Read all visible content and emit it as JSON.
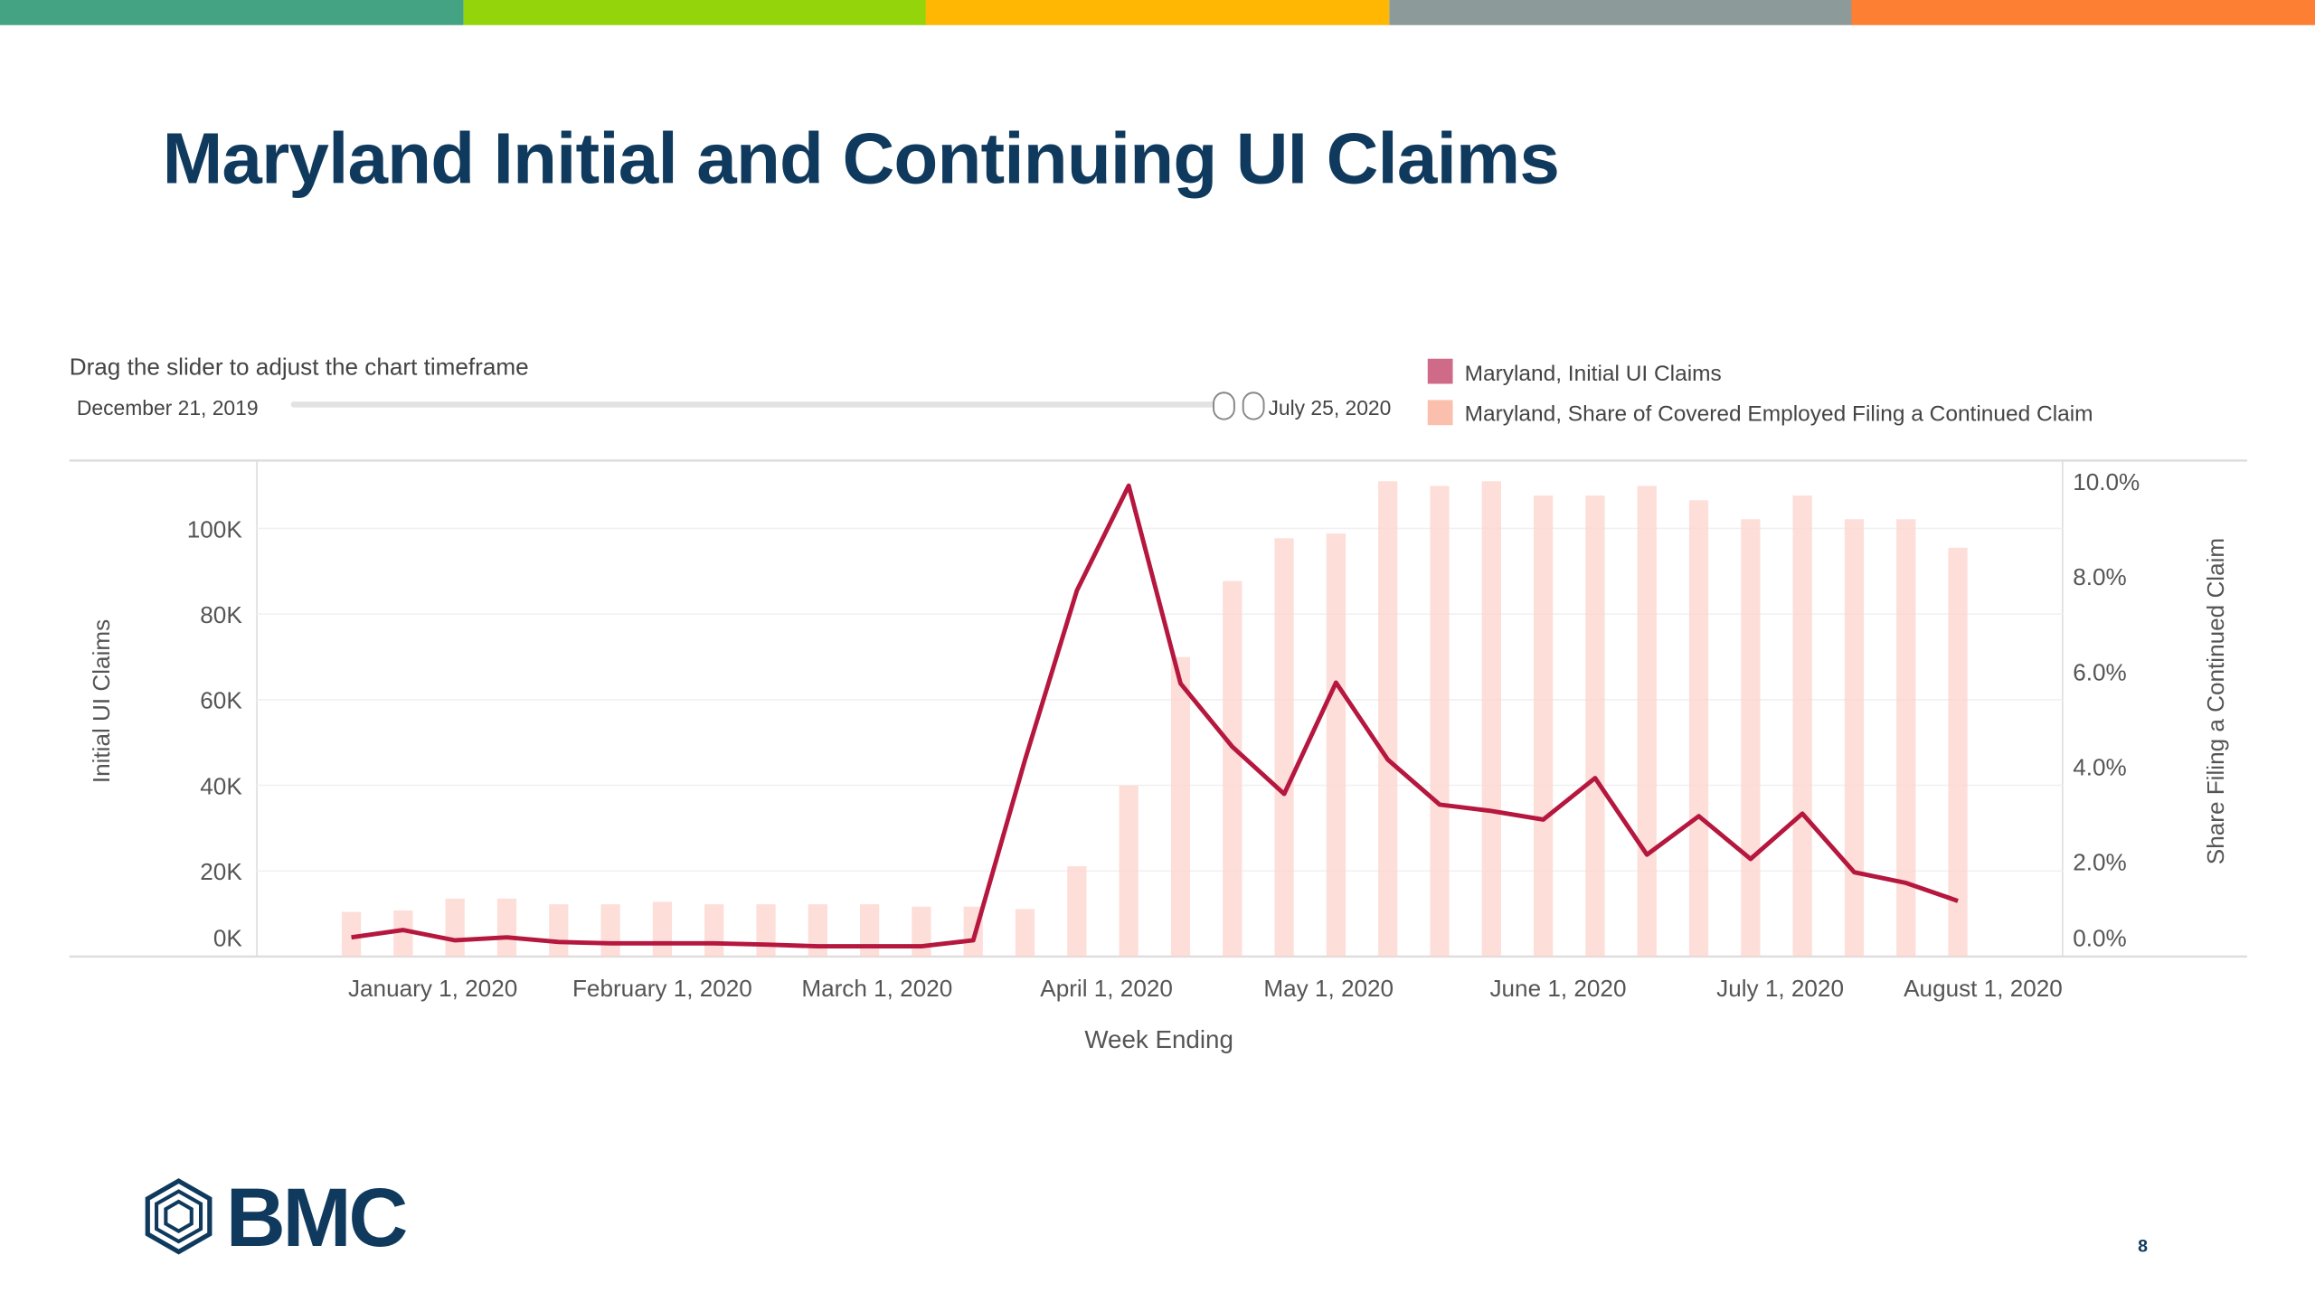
{
  "colors": {
    "stripes": [
      "#44a383",
      "#93d40a",
      "#ffb703",
      "#8c9a99",
      "#fd7f33"
    ],
    "brand": "#0f3a5d",
    "line": "#b5173e",
    "bar": "#fcd6cf",
    "legend_line": "#cf6a88",
    "legend_bar": "#fbbfad"
  },
  "title": "Maryland Initial and Continuing UI Claims",
  "slider": {
    "instruction": "Drag the slider to adjust the chart timeframe",
    "start_label": "December 21, 2019",
    "end_label": "July 25, 2020"
  },
  "logo": {
    "text": "BMC"
  },
  "page_number": "8",
  "chart_data": {
    "type": "bar+line",
    "title": "Maryland Initial and Continuing UI Claims",
    "xlabel": "Week Ending",
    "ylabel": "Initial UI Claims",
    "y2label": "Share Filing a Continued Claim",
    "legend": [
      "Maryland, Initial UI Claims",
      "Maryland, Share of Covered Employed Filing a Continued Claim"
    ],
    "legend_position": "top-right",
    "first_week": "2019-12-21",
    "x_ticks": [
      {
        "label": "January 1, 2020",
        "days": 11
      },
      {
        "label": "February 1, 2020",
        "days": 42
      },
      {
        "label": "March 1, 2020",
        "days": 71
      },
      {
        "label": "April 1, 2020",
        "days": 102
      },
      {
        "label": "May 1, 2020",
        "days": 132
      },
      {
        "label": "June 1, 2020",
        "days": 163
      },
      {
        "label": "July 1, 2020",
        "days": 193
      },
      {
        "label": "August 1, 2020",
        "days": 224
      }
    ],
    "y_ticks": [
      {
        "label": "0K",
        "v": 0
      },
      {
        "label": "20K",
        "v": 20000
      },
      {
        "label": "40K",
        "v": 40000
      },
      {
        "label": "60K",
        "v": 60000
      },
      {
        "label": "80K",
        "v": 80000
      },
      {
        "label": "100K",
        "v": 100000
      }
    ],
    "y2_ticks": [
      {
        "label": "0.0%",
        "v": 0
      },
      {
        "label": "2.0%",
        "v": 2
      },
      {
        "label": "4.0%",
        "v": 4
      },
      {
        "label": "6.0%",
        "v": 6
      },
      {
        "label": "8.0%",
        "v": 8
      },
      {
        "label": "10.0%",
        "v": 10
      }
    ],
    "ylim": [
      0,
      115000
    ],
    "y2lim": [
      0,
      10.4
    ],
    "series": [
      {
        "name": "Maryland, Initial UI Claims",
        "type": "line",
        "axis": "left",
        "values": [
          4500,
          6200,
          3800,
          4500,
          3400,
          3100,
          3100,
          3100,
          2800,
          2400,
          2400,
          2400,
          3800,
          46000,
          85500,
          110000,
          63800,
          49000,
          38000,
          64000,
          46000,
          35500,
          34000,
          32000,
          41700,
          23800,
          32800,
          22800,
          33400,
          19700,
          17200,
          13000
        ]
      },
      {
        "name": "Maryland, Share of Covered Employed Filing a Continued Claim",
        "type": "bar",
        "axis": "right",
        "values": [
          0.94,
          0.97,
          1.22,
          1.22,
          1.1,
          1.1,
          1.15,
          1.1,
          1.1,
          1.1,
          1.1,
          1.05,
          1.05,
          1.0,
          1.9,
          3.6,
          6.3,
          7.9,
          8.8,
          8.9,
          10.0,
          9.9,
          10.0,
          9.7,
          9.7,
          9.9,
          9.6,
          9.2,
          9.7,
          9.2,
          9.2,
          8.6
        ]
      }
    ]
  }
}
